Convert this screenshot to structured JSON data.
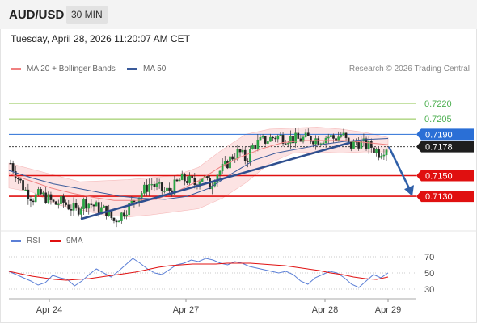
{
  "header": {
    "pair": "AUD/USD",
    "timeframe": "30 MIN"
  },
  "datetime": "Tuesday, April 28, 2026 11:20:07 AM CET",
  "legend": {
    "ma20": {
      "label": "MA 20 + Bollinger Bands",
      "color": "#f08080"
    },
    "ma50": {
      "label": "MA 50",
      "color": "#3a5a9a"
    }
  },
  "credit": "Research © 2026 Trading Central",
  "rsi_legend": {
    "rsi": {
      "label": "RSI",
      "color": "#5b7fd6"
    },
    "ma9": {
      "label": "9MA",
      "color": "#e01010"
    }
  },
  "chart_data": [
    {
      "type": "candlestick",
      "title": "AUD/USD 30 MIN",
      "x_ticks": [
        "Apr 24",
        "Apr 27",
        "Apr 28",
        "Apr 29"
      ],
      "levels": [
        {
          "value": 0.722,
          "label": "0.7220",
          "style": "target",
          "color": "#8bc34a"
        },
        {
          "value": 0.7205,
          "label": "0.7205",
          "style": "target",
          "color": "#8bc34a"
        },
        {
          "value": 0.719,
          "label": "0.7190",
          "style": "pivot",
          "color": "#2a6fd6"
        },
        {
          "value": 0.7178,
          "label": "0.7178",
          "style": "last-price",
          "color": "#222222"
        },
        {
          "value": 0.715,
          "label": "0.7150",
          "style": "support",
          "color": "#e01010"
        },
        {
          "value": 0.713,
          "label": "0.7130",
          "style": "support",
          "color": "#e01010"
        }
      ],
      "ylim": [
        0.7098,
        0.7245
      ],
      "close_path": [
        0.7162,
        0.7148,
        0.7136,
        0.7128,
        0.7132,
        0.7128,
        0.7122,
        0.7125,
        0.712,
        0.7116,
        0.7125,
        0.7122,
        0.7118,
        0.7116,
        0.7106,
        0.7112,
        0.712,
        0.7128,
        0.7135,
        0.7143,
        0.7138,
        0.7134,
        0.7138,
        0.7146,
        0.7146,
        0.7142,
        0.715,
        0.714,
        0.7152,
        0.7158,
        0.7168,
        0.7173,
        0.7165,
        0.718,
        0.7183,
        0.7185,
        0.7188,
        0.7187,
        0.7186,
        0.7185,
        0.7186,
        0.7186,
        0.7185,
        0.7188,
        0.7186,
        0.719,
        0.7178,
        0.7183,
        0.718,
        0.7178,
        0.7172,
        0.7178
      ],
      "ma20": {
        "name": "MA 20",
        "values": [
          0.7152,
          0.7145,
          0.7138,
          0.7133,
          0.7129,
          0.7126,
          0.7126,
          0.7127,
          0.7135,
          0.7145,
          0.7158,
          0.7168,
          0.7176,
          0.7182,
          0.7184,
          0.7184,
          0.7184,
          0.7182,
          0.718
        ]
      },
      "ma50": {
        "name": "MA 50",
        "values": [
          0.7155,
          0.7148,
          0.7142,
          0.7138,
          0.7134,
          0.713,
          0.7128,
          0.7127,
          0.713,
          0.7138,
          0.7152,
          0.7165,
          0.7172,
          0.7176,
          0.718,
          0.7183,
          0.7185,
          0.7186
        ]
      },
      "bollinger": {
        "upper": [
          0.7162,
          0.7156,
          0.715,
          0.7144,
          0.7145,
          0.7146,
          0.7148,
          0.715,
          0.7158,
          0.7175,
          0.719,
          0.7195,
          0.7196,
          0.7197,
          0.7195,
          0.7192,
          0.7187
        ],
        "lower": [
          0.7138,
          0.7134,
          0.7122,
          0.7117,
          0.7112,
          0.711,
          0.7112,
          0.7115,
          0.7118,
          0.7128,
          0.7143,
          0.7162,
          0.7172,
          0.7173,
          0.7172,
          0.7173,
          0.7173
        ]
      },
      "trendline": [
        0.7108,
        0.7182
      ],
      "forecast": [
        0.7178,
        0.713
      ]
    },
    {
      "type": "line",
      "title": "RSI",
      "yticks": [
        70,
        50,
        30
      ],
      "ylim": [
        20,
        80
      ],
      "series": [
        {
          "name": "RSI",
          "values": [
            52,
            48,
            44,
            40,
            35,
            38,
            47,
            44,
            42,
            34,
            40,
            48,
            55,
            50,
            45,
            52,
            60,
            68,
            62,
            55,
            50,
            48,
            54,
            60,
            62,
            66,
            64,
            68,
            66,
            62,
            60,
            64,
            62,
            58,
            56,
            54,
            52,
            50,
            52,
            48,
            40,
            36,
            44,
            48,
            52,
            50,
            44,
            36,
            32,
            40,
            48,
            44,
            50
          ]
        },
        {
          "name": "9MA",
          "values": [
            52,
            49,
            46,
            44,
            42,
            41,
            42,
            43,
            45,
            47,
            49,
            51,
            54,
            57,
            59,
            60,
            61,
            61,
            61,
            62,
            62,
            62,
            61,
            60,
            59,
            57,
            55,
            53,
            50,
            48,
            45,
            43,
            42,
            45
          ]
        }
      ]
    }
  ]
}
